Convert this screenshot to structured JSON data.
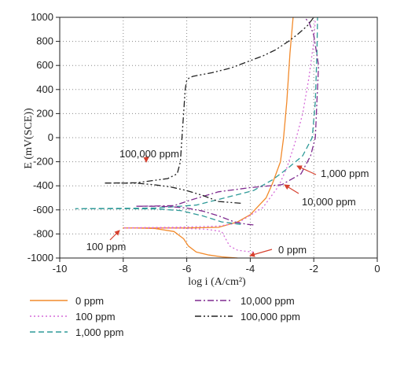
{
  "chart_data": {
    "type": "line",
    "title": "",
    "xlabel": "log i (A/cm²)",
    "ylabel": "E (mV(SCE))",
    "xlim": [
      -10,
      0
    ],
    "ylim": [
      -1000,
      1000
    ],
    "xticks": [
      -10,
      -8,
      -6,
      -4,
      -2,
      0
    ],
    "yticks": [
      -1000,
      -800,
      -600,
      -400,
      -200,
      0,
      200,
      400,
      600,
      800,
      1000
    ],
    "grid": "dotted",
    "legend_position": "bottom",
    "series": [
      {
        "name": "0 ppm",
        "color": "#f28a2b",
        "dash": "solid",
        "x": [
          -4.4,
          -4.9,
          -5.3,
          -5.7,
          -5.95,
          -6.1,
          -6.4,
          -7.0,
          -7.6,
          -8.0,
          -7.0,
          -6.0,
          -5.0,
          -4.4,
          -4.0,
          -3.5,
          -3.3,
          -3.05,
          -2.95,
          -2.85,
          -2.75,
          -2.65
        ],
        "y": [
          -1000,
          -990,
          -975,
          -950,
          -900,
          -840,
          -780,
          -755,
          -750,
          -750,
          -750,
          -750,
          -745,
          -700,
          -640,
          -500,
          -380,
          -200,
          0,
          300,
          700,
          1000
        ]
      },
      {
        "name": "100 ppm",
        "color": "#d66bd9",
        "dash": "dotted",
        "x": [
          -3.9,
          -4.1,
          -4.4,
          -4.65,
          -4.9,
          -5.4,
          -6.2,
          -7.2,
          -8.0,
          -7.5,
          -6.5,
          -5.0,
          -4.4,
          -3.6,
          -3.1,
          -2.85,
          -2.6,
          -2.35,
          -2.15,
          -2.0,
          -1.95
        ],
        "y": [
          -950,
          -945,
          -935,
          -900,
          -780,
          -760,
          -752,
          -750,
          -750,
          -748,
          -745,
          -735,
          -710,
          -580,
          -400,
          -250,
          -50,
          200,
          500,
          800,
          980
        ]
      },
      {
        "name": "1,000 ppm",
        "color": "#2e9a98",
        "dash": "dashed",
        "x": [
          -4.3,
          -4.9,
          -5.5,
          -6.2,
          -7.0,
          -8.0,
          -9.0,
          -9.5,
          -8.5,
          -7.0,
          -5.7,
          -4.8,
          -3.9,
          -3.3,
          -2.8,
          -2.35,
          -2.05,
          -1.95,
          -1.9,
          -1.88
        ],
        "y": [
          -720,
          -700,
          -650,
          -605,
          -592,
          -590,
          -590,
          -590,
          -588,
          -585,
          -560,
          -500,
          -440,
          -350,
          -250,
          -150,
          0,
          300,
          700,
          1000
        ]
      },
      {
        "name": "10,000 ppm",
        "color": "#7e2a8f",
        "dash": "dashdot",
        "x": [
          -3.9,
          -4.1,
          -4.5,
          -5.0,
          -5.5,
          -6.0,
          -6.5,
          -7.0,
          -7.6,
          -7.0,
          -6.4,
          -5.9,
          -5.0,
          -4.0,
          -3.0,
          -2.4,
          -2.1,
          -1.95,
          -1.9,
          -1.85,
          -2.0,
          -2.15,
          -2.3
        ],
        "y": [
          -725,
          -720,
          -700,
          -650,
          -610,
          -585,
          -573,
          -570,
          -570,
          -568,
          -565,
          -520,
          -450,
          -415,
          -390,
          -300,
          -150,
          0,
          300,
          600,
          850,
          960,
          1000
        ]
      },
      {
        "name": "100,000 ppm",
        "color": "#222222",
        "dash": "dashdotdot",
        "x": [
          -4.3,
          -5.0,
          -5.5,
          -6.0,
          -6.5,
          -7.0,
          -7.5,
          -8.0,
          -8.6,
          -7.6,
          -6.6,
          -6.3,
          -6.2,
          -6.15,
          -6.1,
          -6.05,
          -6.0,
          -5.9,
          -5.8,
          -5.6,
          -5.2,
          -4.6,
          -4.0,
          -3.6,
          -3.2,
          -2.8,
          -2.5,
          -2.2,
          -2.0
        ],
        "y": [
          -545,
          -530,
          -480,
          -440,
          -410,
          -392,
          -380,
          -377,
          -377,
          -375,
          -340,
          -300,
          -200,
          0,
          200,
          400,
          480,
          500,
          510,
          520,
          540,
          580,
          640,
          680,
          730,
          800,
          860,
          930,
          1000
        ]
      }
    ],
    "annotations": [
      {
        "text": "100,000 ppm",
        "target": [
          -7.1,
          -200
        ]
      },
      {
        "text": "1,000 ppm",
        "target": [
          -2.4,
          -240
        ]
      },
      {
        "text": "10,000 ppm",
        "target": [
          -3.2,
          -400
        ]
      },
      {
        "text": "100 ppm",
        "target": [
          -8.2,
          -790
        ]
      },
      {
        "text": "0 ppm",
        "target": [
          -4.3,
          -970
        ]
      }
    ]
  }
}
